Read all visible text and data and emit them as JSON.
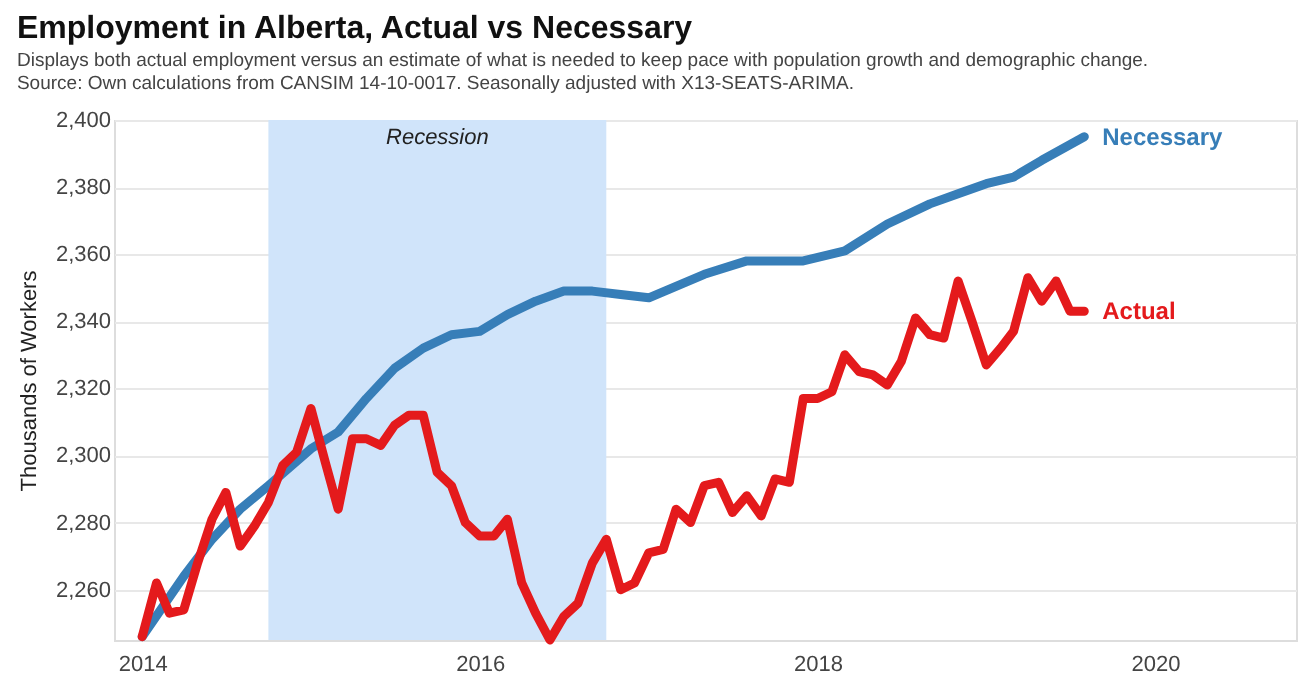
{
  "chart_data": {
    "type": "line",
    "title": "Employment in Alberta, Actual vs Necessary",
    "subtitle": "Displays both actual employment versus an estimate of what is needed to keep pace with population growth and demographic change.",
    "annotations": [
      "Source: Own calculations from CANSIM 14-10-0017. Seasonally adjusted with X13-SEATS-ARIMA."
    ],
    "ylabel": "Thousands of Workers",
    "series": [
      {
        "name": "Necessary",
        "color": "#377eb8",
        "x": [
          "2014-01",
          "2014-04",
          "2014-06",
          "2014-08",
          "2014-10",
          "2015-01",
          "2015-03",
          "2015-05",
          "2015-07",
          "2015-09",
          "2015-11",
          "2016-01",
          "2016-03",
          "2016-05",
          "2016-07",
          "2016-09",
          "2016-11",
          "2017-01",
          "2017-05",
          "2017-08",
          "2017-12",
          "2018-03",
          "2018-06",
          "2018-09",
          "2018-11",
          "2019-01",
          "2019-03",
          "2019-05",
          "2019-08"
        ],
        "values": [
          2246,
          2264,
          2275,
          2284,
          2291,
          2302,
          2307,
          2317,
          2326,
          2332,
          2336,
          2337,
          2342,
          2346,
          2349,
          2349,
          2348,
          2347,
          2354,
          2358,
          2358,
          2361,
          2369,
          2375,
          2378,
          2381,
          2383,
          2388,
          2395
        ]
      },
      {
        "name": "Actual",
        "color": "#e41a1c",
        "x": [
          "2014-01",
          "2014-02",
          "2014-03",
          "2014-04",
          "2014-05",
          "2014-06",
          "2014-07",
          "2014-08",
          "2014-09",
          "2014-10",
          "2014-11",
          "2014-12",
          "2015-01",
          "2015-02",
          "2015-03",
          "2015-04",
          "2015-05",
          "2015-06",
          "2015-07",
          "2015-08",
          "2015-09",
          "2015-10",
          "2015-11",
          "2015-12",
          "2016-01",
          "2016-02",
          "2016-03",
          "2016-04",
          "2016-05",
          "2016-06",
          "2016-07",
          "2016-08",
          "2016-09",
          "2016-10",
          "2016-11",
          "2016-12",
          "2017-01",
          "2017-02",
          "2017-03",
          "2017-04",
          "2017-05",
          "2017-06",
          "2017-07",
          "2017-08",
          "2017-09",
          "2017-10",
          "2017-11",
          "2017-12",
          "2018-01",
          "2018-02",
          "2018-03",
          "2018-04",
          "2018-05",
          "2018-06",
          "2018-07",
          "2018-08",
          "2018-09",
          "2018-10",
          "2018-11",
          "2018-12",
          "2019-01",
          "2019-02",
          "2019-03",
          "2019-04",
          "2019-05",
          "2019-06",
          "2019-07",
          "2019-08"
        ],
        "values": [
          2246,
          2262,
          2253,
          2254,
          2268,
          2281,
          2289,
          2273,
          2279,
          2286,
          2297,
          2301,
          2314,
          2298,
          2284,
          2305,
          2305,
          2303,
          2309,
          2312,
          2312,
          2295,
          2291,
          2280,
          2276,
          2276,
          2281,
          2262,
          2253,
          2245,
          2252,
          2256,
          2268,
          2275,
          2260,
          2262,
          2271,
          2272,
          2284,
          2280,
          2291,
          2292,
          2283,
          2288,
          2282,
          2293,
          2292,
          2317,
          2317,
          2319,
          2330,
          2325,
          2324,
          2321,
          2328,
          2341,
          2336,
          2335,
          2352,
          2340,
          2327,
          2332,
          2337,
          2353,
          2346,
          2352,
          2343,
          2343
        ]
      }
    ],
    "xlim": [
      "2013-11",
      "2020-11"
    ],
    "xticks": [
      "2014",
      "2016",
      "2018",
      "2020"
    ],
    "ylim": [
      2245,
      2400
    ],
    "yticks": [
      {
        "value": 2260,
        "label": "2,260"
      },
      {
        "value": 2280,
        "label": "2,280"
      },
      {
        "value": 2300,
        "label": "2,300"
      },
      {
        "value": 2320,
        "label": "2,320"
      },
      {
        "value": 2340,
        "label": "2,340"
      },
      {
        "value": 2360,
        "label": "2,360"
      },
      {
        "value": 2380,
        "label": "2,380"
      },
      {
        "value": 2400,
        "label": "2,400"
      }
    ],
    "bands": [
      {
        "axis": "x",
        "from": "2014-10",
        "to": "2016-10",
        "label": "Recession",
        "color": "#d0e4fa"
      }
    ],
    "grid": "y",
    "legend": false,
    "marker": "none",
    "line_style": "solid"
  }
}
